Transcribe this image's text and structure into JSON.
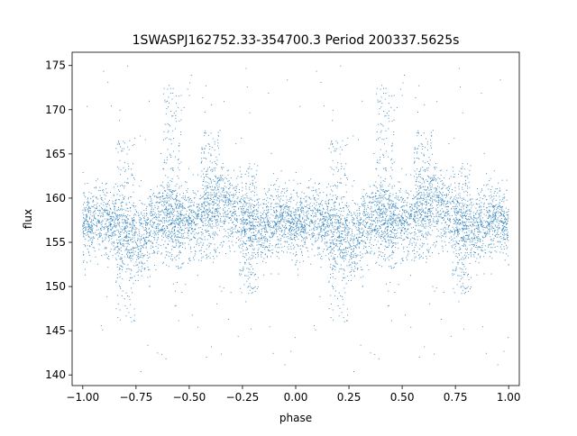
{
  "chart_data": {
    "type": "scatter",
    "title": "1SWASPJ162752.33-354700.3 Period 200337.5625s",
    "xlabel": "phase",
    "ylabel": "flux",
    "xlim": [
      -1.05,
      1.05
    ],
    "ylim": [
      138.8,
      176.5
    ],
    "x_ticks": [
      -1.0,
      -0.75,
      -0.5,
      -0.25,
      0.0,
      0.25,
      0.5,
      0.75,
      1.0
    ],
    "x_tick_labels": [
      "−1.00",
      "−0.75",
      "−0.50",
      "−0.25",
      "0.00",
      "0.25",
      "0.50",
      "0.75",
      "1.00"
    ],
    "y_ticks": [
      140,
      145,
      150,
      155,
      160,
      165,
      170,
      175
    ],
    "y_tick_labels": [
      "140",
      "145",
      "150",
      "155",
      "160",
      "165",
      "170",
      "175"
    ],
    "grid": false,
    "point_color": "#1f77b4",
    "series": [
      {
        "description": "folded light curve, same data repeated for phase -1..0 and 0..1",
        "profile": {
          "phase": [
            0.0,
            0.05,
            0.1,
            0.15,
            0.2,
            0.25,
            0.3,
            0.35,
            0.4,
            0.45,
            0.5,
            0.55,
            0.6,
            0.65,
            0.7,
            0.75,
            0.8,
            0.85,
            0.9,
            0.95,
            1.0
          ],
          "flux_center": [
            157.0,
            157.5,
            158.0,
            157.0,
            156.0,
            155.5,
            156.0,
            157.5,
            158.0,
            157.5,
            157.0,
            157.5,
            159.0,
            159.5,
            158.5,
            157.5,
            156.5,
            157.0,
            157.5,
            158.0,
            157.0
          ]
        },
        "features": [
          {
            "phase": 0.2,
            "flux_min": 146.0,
            "flux_max": 167.0
          },
          {
            "phase": 0.42,
            "flux_min": 152.0,
            "flux_max": 173.0
          },
          {
            "phase": 0.6,
            "flux_min": 153.0,
            "flux_max": 168.0
          },
          {
            "phase": 0.78,
            "flux_min": 149.0,
            "flux_max": 164.0
          }
        ]
      }
    ]
  }
}
